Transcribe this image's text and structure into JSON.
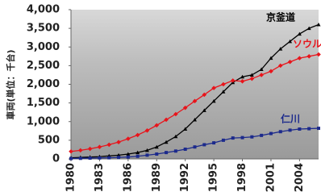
{
  "chart_data": {
    "type": "line",
    "ylabel": "車両(単位：千台)",
    "x": [
      1980,
      1981,
      1982,
      1983,
      1984,
      1985,
      1986,
      1987,
      1988,
      1989,
      1990,
      1991,
      1992,
      1993,
      1994,
      1995,
      1996,
      1997,
      1998,
      1999,
      2000,
      2001,
      2002,
      2003,
      2004,
      2005,
      2006
    ],
    "series": [
      {
        "name": "京釜道",
        "color": "#000000",
        "marker": "triangle",
        "values": [
          30,
          40,
          50,
          60,
          80,
          100,
          130,
          170,
          230,
          320,
          450,
          600,
          800,
          1050,
          1300,
          1550,
          1800,
          2050,
          2200,
          2250,
          2400,
          2700,
          2950,
          3150,
          3350,
          3500,
          3600
        ]
      },
      {
        "name": "ソウル",
        "color": "#e8141b",
        "marker": "diamond",
        "values": [
          200,
          230,
          270,
          320,
          380,
          450,
          540,
          640,
          760,
          900,
          1050,
          1200,
          1370,
          1550,
          1720,
          1900,
          2000,
          2100,
          2080,
          2150,
          2250,
          2350,
          2500,
          2600,
          2700,
          2750,
          2800
        ]
      },
      {
        "name": "仁川",
        "color": "#1c2a8c",
        "marker": "square",
        "values": [
          10,
          15,
          20,
          25,
          30,
          40,
          50,
          70,
          100,
          130,
          170,
          210,
          260,
          320,
          380,
          430,
          500,
          560,
          570,
          590,
          630,
          680,
          730,
          770,
          800,
          810,
          820
        ]
      }
    ],
    "xlim": [
      1980,
      2006
    ],
    "xticks": [
      1980,
      1983,
      1986,
      1989,
      1992,
      1995,
      1998,
      2001,
      2004
    ],
    "ylim": [
      0,
      4000
    ],
    "yticks": [
      0,
      500,
      {
        "value": 1000,
        "label": "1,000"
      },
      {
        "value": 1500,
        "label": "1,500"
      },
      {
        "value": 2000,
        "label": "2,000"
      },
      {
        "value": 2500,
        "label": "2,500"
      },
      {
        "value": 3000,
        "label": "3,000"
      },
      {
        "value": 3500,
        "label": "3,500"
      },
      {
        "value": 4000,
        "label": "4,000"
      }
    ]
  }
}
